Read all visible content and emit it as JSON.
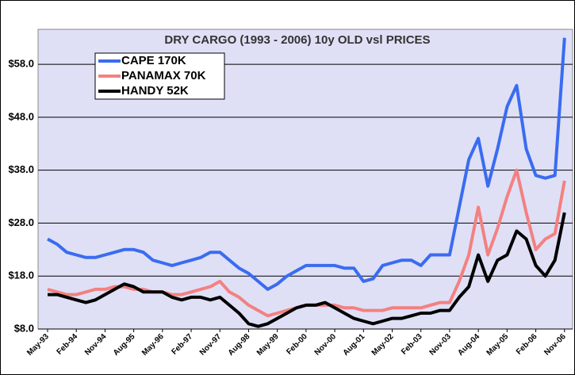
{
  "chart_data": {
    "type": "line",
    "title": "DRY CARGO (1993 - 2006) 10y OLD vsl PRICES",
    "categories": [
      "May-93",
      null,
      null,
      "Feb-94",
      null,
      null,
      "Nov-94",
      null,
      null,
      "Aug-95",
      null,
      null,
      "May-96",
      null,
      null,
      "Feb-97",
      null,
      null,
      "Nov-97",
      null,
      null,
      "Aug-98",
      null,
      null,
      "May-99",
      null,
      null,
      "Feb-00",
      null,
      null,
      "Nov-00",
      null,
      null,
      "Aug-01",
      null,
      null,
      "May-02",
      null,
      null,
      "Feb-03",
      null,
      null,
      "Nov-03",
      null,
      null,
      "Aug-04",
      null,
      null,
      "May-05",
      null,
      null,
      "Feb-06",
      null,
      null,
      "Nov-06"
    ],
    "series": [
      {
        "name": "CAPE 170K",
        "color": "#3a6cf0",
        "values": [
          25,
          24,
          22.5,
          22,
          21.5,
          21.5,
          22,
          22.5,
          23,
          23,
          22.5,
          21,
          20.5,
          20,
          20.5,
          21,
          21.5,
          22.5,
          22.5,
          21,
          19.5,
          18.5,
          17,
          15.5,
          16.5,
          18,
          19,
          20,
          20,
          20,
          20,
          19.5,
          19.5,
          17,
          17.5,
          20,
          20.5,
          21,
          21,
          20,
          22,
          22,
          22,
          31,
          40,
          44,
          35,
          42,
          50,
          54,
          42,
          37,
          36.5,
          37,
          63
        ]
      },
      {
        "name": "PANAMAX 70K",
        "color": "#f38181",
        "values": [
          15.5,
          15,
          14.5,
          14.5,
          15,
          15.5,
          15.5,
          16,
          16,
          15.5,
          15.5,
          15,
          15,
          14.5,
          14.5,
          15,
          15.5,
          16,
          17,
          15,
          14,
          12.5,
          11.5,
          10.5,
          11,
          11.5,
          12,
          12.5,
          12.5,
          12.5,
          12.5,
          12,
          12,
          11.5,
          11.5,
          11.5,
          12,
          12,
          12,
          12,
          12.5,
          13,
          13,
          17,
          22,
          31,
          22,
          27,
          33,
          38,
          30,
          23,
          25,
          26,
          36
        ]
      },
      {
        "name": "HANDY 52K",
        "color": "#000000",
        "values": [
          14.5,
          14.5,
          14,
          13.5,
          13,
          13.5,
          14.5,
          15.5,
          16.5,
          16,
          15,
          15,
          15,
          14,
          13.5,
          14,
          14,
          13.5,
          14,
          12.5,
          11,
          9,
          8.5,
          9,
          10,
          11,
          12,
          12.5,
          12.5,
          13,
          12,
          11,
          10,
          9.5,
          9,
          9.5,
          10,
          10,
          10.5,
          11,
          11,
          11.5,
          11.5,
          14,
          16,
          22,
          17,
          21,
          22,
          26.5,
          25,
          20,
          18,
          21,
          30
        ]
      }
    ],
    "ylim": [
      8,
      64.6
    ],
    "yticks": [
      {
        "value": 8,
        "label": "$8.0"
      },
      {
        "value": 18,
        "label": "$18.0"
      },
      {
        "value": 28,
        "label": "$28.0"
      },
      {
        "value": 38,
        "label": "$38.0"
      },
      {
        "value": 48,
        "label": "$48.0"
      },
      {
        "value": 58,
        "label": "$58.0"
      }
    ],
    "grid": true,
    "legend": "top-left"
  }
}
